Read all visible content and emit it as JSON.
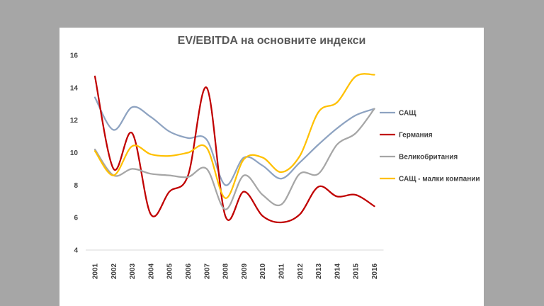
{
  "chart_data": {
    "type": "line",
    "title": "EV/EBITDA на основните индекси",
    "xlabel": "",
    "ylabel": "",
    "categories": [
      "2001",
      "2002",
      "2003",
      "2004",
      "2005",
      "2006",
      "2007",
      "2008",
      "2009",
      "2010",
      "2011",
      "2012",
      "2013",
      "2014",
      "2015",
      "2016"
    ],
    "ylim": [
      4,
      16
    ],
    "yticks": [
      4,
      6,
      8,
      10,
      12,
      14,
      16
    ],
    "legend_position": "right",
    "grid": false,
    "series": [
      {
        "name": "САЩ",
        "color": "#8ea3c1",
        "values": [
          13.4,
          11.4,
          12.8,
          12.2,
          11.3,
          10.9,
          10.8,
          8.0,
          9.7,
          9.2,
          8.4,
          9.4,
          10.5,
          11.5,
          12.3,
          12.7
        ]
      },
      {
        "name": "Германия",
        "color": "#c00000",
        "values": [
          14.7,
          9.0,
          11.2,
          6.2,
          7.6,
          8.6,
          14.0,
          6.1,
          7.6,
          6.1,
          5.7,
          6.2,
          7.9,
          7.3,
          7.4,
          6.7
        ]
      },
      {
        "name": "Великобритания",
        "color": "#a6a6a6",
        "values": [
          10.2,
          8.6,
          9.0,
          8.7,
          8.6,
          8.5,
          9.0,
          6.5,
          8.6,
          7.4,
          6.8,
          8.7,
          8.7,
          10.5,
          11.2,
          12.7
        ]
      },
      {
        "name": "САЩ - малки компании",
        "color": "#ffc000",
        "values": [
          10.1,
          8.6,
          10.4,
          9.9,
          9.8,
          10.0,
          10.3,
          7.2,
          9.6,
          9.7,
          8.8,
          9.8,
          12.5,
          13.1,
          14.7,
          14.8
        ]
      }
    ]
  }
}
